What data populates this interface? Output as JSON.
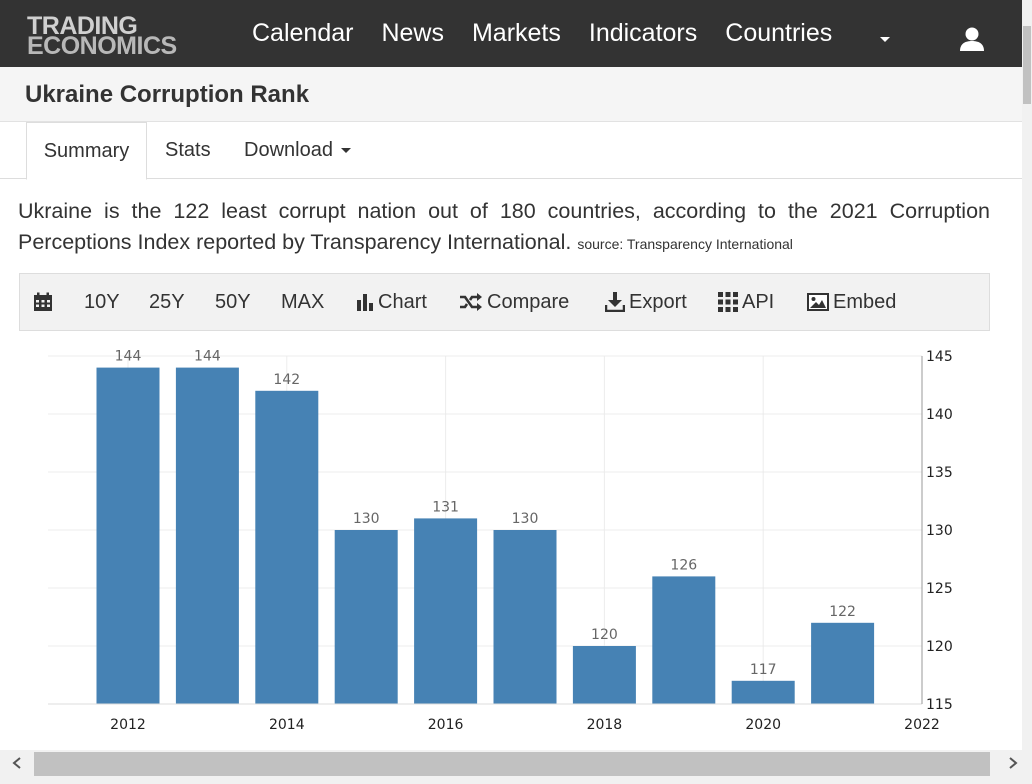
{
  "header": {
    "logo_line1": "TRADING",
    "logo_line2": "ECONOMICS",
    "nav": [
      "Calendar",
      "News",
      "Markets",
      "Indicators",
      "Countries"
    ]
  },
  "page": {
    "title": "Ukraine Corruption Rank"
  },
  "tabs": {
    "summary": "Summary",
    "stats": "Stats",
    "download": "Download"
  },
  "description": {
    "text": "Ukraine is the 122 least corrupt nation out of 180 countries, according to the 2021 Corruption Perceptions Index reported by Transparency International.",
    "source": "source: Transparency International"
  },
  "toolbar": {
    "ranges": [
      "10Y",
      "25Y",
      "50Y",
      "MAX"
    ],
    "chart": "Chart",
    "compare": "Compare",
    "export": "Export",
    "api": "API",
    "embed": "Embed"
  },
  "colors": {
    "bar": "#4682b4",
    "header_bg": "#333333"
  },
  "chart_data": {
    "type": "bar",
    "categories": [
      "2012",
      "2013",
      "2014",
      "2015",
      "2016",
      "2017",
      "2018",
      "2019",
      "2020",
      "2021"
    ],
    "values": [
      144,
      144,
      142,
      130,
      131,
      130,
      120,
      126,
      117,
      122
    ],
    "x_ticks": [
      "2012",
      "2014",
      "2016",
      "2018",
      "2020",
      "2022"
    ],
    "y_ticks": [
      115,
      120,
      125,
      130,
      135,
      140,
      145
    ],
    "ylim": [
      115,
      145
    ],
    "y_axis_side": "right",
    "grid": true,
    "data_labels": true
  }
}
